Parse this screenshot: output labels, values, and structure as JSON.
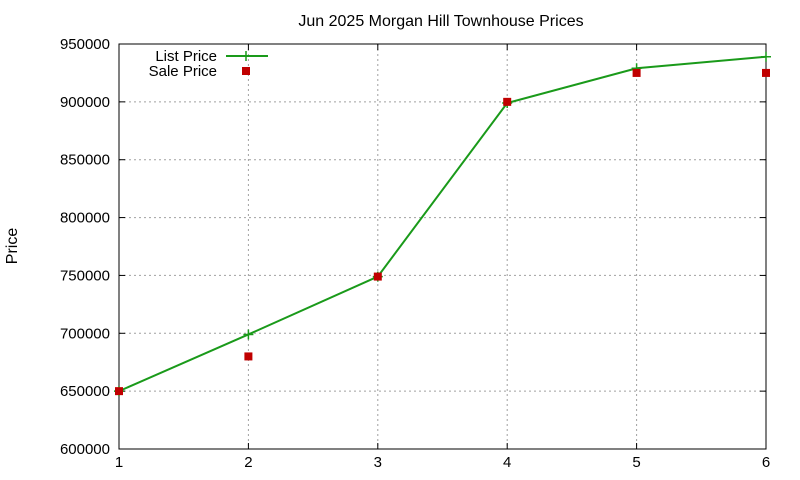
{
  "chart_data": {
    "type": "line",
    "title": "Jun 2025 Morgan Hill Townhouse Prices",
    "xlabel": "",
    "ylabel": "Price",
    "x": [
      1,
      2,
      3,
      4,
      5,
      6
    ],
    "xlim": [
      1,
      6
    ],
    "ylim": [
      600000,
      950000
    ],
    "xticks": [
      "1",
      "2",
      "3",
      "4",
      "5",
      "6"
    ],
    "yticks": [
      "600000",
      "650000",
      "700000",
      "750000",
      "800000",
      "850000",
      "900000",
      "950000"
    ],
    "grid": true,
    "legend_position": "top-left",
    "series": [
      {
        "name": "List Price",
        "style": "line-with-plus-markers",
        "color": "#1a9a1a",
        "values": [
          650000,
          699000,
          749000,
          899000,
          929000,
          939000
        ]
      },
      {
        "name": "Sale Price",
        "style": "square-markers",
        "color": "#c00000",
        "values": [
          650000,
          680000,
          749000,
          900000,
          925000,
          925000
        ]
      }
    ]
  }
}
